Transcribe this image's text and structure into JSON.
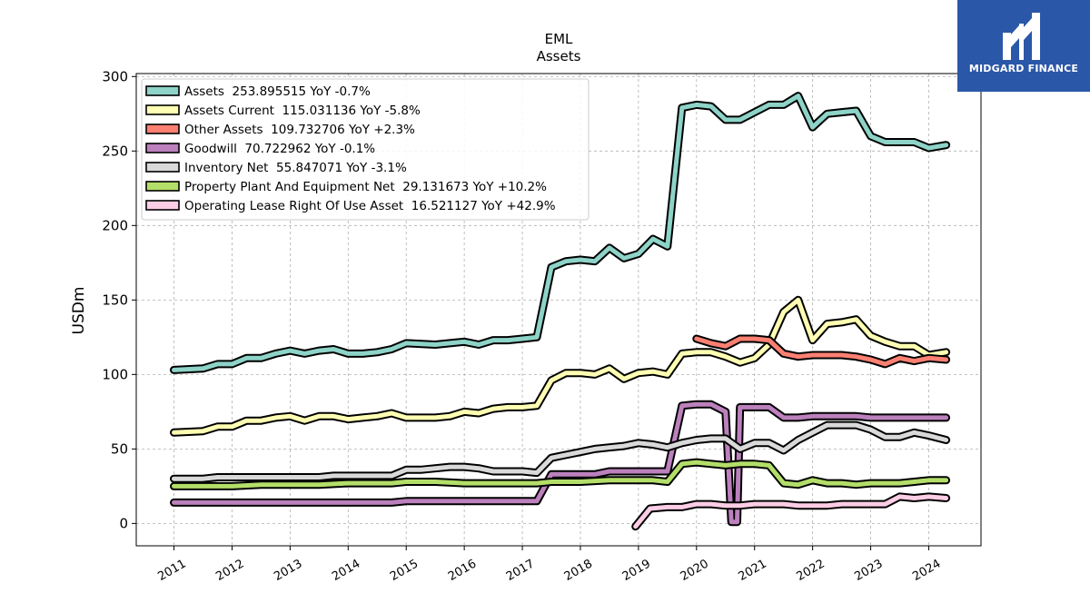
{
  "chart_data": {
    "type": "line",
    "title": "EML",
    "subtitle": "Assets",
    "xlabel": "",
    "ylabel": "USDm",
    "ylim": [
      -15,
      302
    ],
    "xlim": [
      2010.35,
      2024.9
    ],
    "yticks": [
      0,
      50,
      100,
      150,
      200,
      250,
      300
    ],
    "xticks": [
      "2011",
      "2012",
      "2013",
      "2014",
      "2015",
      "2016",
      "2017",
      "2018",
      "2019",
      "2020",
      "2021",
      "2022",
      "2023",
      "2024"
    ],
    "grid": true,
    "legend_position": "top-left",
    "series": [
      {
        "name": "Assets  253.895515 YoY -0.7%",
        "color": "#8dd3c7",
        "points": [
          [
            2011.0,
            103
          ],
          [
            2011.5,
            104
          ],
          [
            2011.75,
            107
          ],
          [
            2012.0,
            107
          ],
          [
            2012.25,
            111
          ],
          [
            2012.5,
            111
          ],
          [
            2012.75,
            114
          ],
          [
            2013.0,
            116
          ],
          [
            2013.25,
            114
          ],
          [
            2013.5,
            116
          ],
          [
            2013.75,
            117
          ],
          [
            2014.0,
            114
          ],
          [
            2014.25,
            114
          ],
          [
            2014.5,
            115
          ],
          [
            2014.75,
            117
          ],
          [
            2015.0,
            121
          ],
          [
            2015.5,
            120
          ],
          [
            2015.75,
            121
          ],
          [
            2016.0,
            122
          ],
          [
            2016.25,
            120
          ],
          [
            2016.5,
            123
          ],
          [
            2016.75,
            123
          ],
          [
            2017.0,
            124
          ],
          [
            2017.25,
            125
          ],
          [
            2017.5,
            172
          ],
          [
            2017.75,
            176
          ],
          [
            2018.0,
            177
          ],
          [
            2018.25,
            176
          ],
          [
            2018.5,
            185
          ],
          [
            2018.75,
            178
          ],
          [
            2019.0,
            181
          ],
          [
            2019.25,
            191
          ],
          [
            2019.5,
            186
          ],
          [
            2019.75,
            279
          ],
          [
            2020.0,
            281
          ],
          [
            2020.25,
            280
          ],
          [
            2020.5,
            271
          ],
          [
            2020.75,
            271
          ],
          [
            2021.0,
            276
          ],
          [
            2021.25,
            281
          ],
          [
            2021.5,
            281
          ],
          [
            2021.75,
            287
          ],
          [
            2022.0,
            266
          ],
          [
            2022.25,
            275
          ],
          [
            2022.5,
            276
          ],
          [
            2022.75,
            277
          ],
          [
            2023.0,
            260
          ],
          [
            2023.25,
            256
          ],
          [
            2023.5,
            256
          ],
          [
            2023.75,
            256
          ],
          [
            2024.0,
            252
          ],
          [
            2024.3,
            254
          ]
        ]
      },
      {
        "name": "Assets Current  115.031136 YoY -5.8%",
        "color": "#ffffb3",
        "points": [
          [
            2011.0,
            61
          ],
          [
            2011.5,
            62
          ],
          [
            2011.75,
            65
          ],
          [
            2012.0,
            65
          ],
          [
            2012.25,
            69
          ],
          [
            2012.5,
            69
          ],
          [
            2012.75,
            71
          ],
          [
            2013.0,
            72
          ],
          [
            2013.25,
            69
          ],
          [
            2013.5,
            72
          ],
          [
            2013.75,
            72
          ],
          [
            2014.0,
            70
          ],
          [
            2014.25,
            71
          ],
          [
            2014.5,
            72
          ],
          [
            2014.75,
            74
          ],
          [
            2015.0,
            71
          ],
          [
            2015.5,
            71
          ],
          [
            2015.75,
            72
          ],
          [
            2016.0,
            75
          ],
          [
            2016.25,
            74
          ],
          [
            2016.5,
            77
          ],
          [
            2016.75,
            78
          ],
          [
            2017.0,
            78
          ],
          [
            2017.25,
            79
          ],
          [
            2017.5,
            96
          ],
          [
            2017.75,
            101
          ],
          [
            2018.0,
            101
          ],
          [
            2018.25,
            100
          ],
          [
            2018.5,
            104
          ],
          [
            2018.75,
            97
          ],
          [
            2019.0,
            101
          ],
          [
            2019.25,
            102
          ],
          [
            2019.5,
            100
          ],
          [
            2019.75,
            114
          ],
          [
            2020.0,
            115
          ],
          [
            2020.25,
            115
          ],
          [
            2020.5,
            112
          ],
          [
            2020.75,
            108
          ],
          [
            2021.0,
            111
          ],
          [
            2021.25,
            120
          ],
          [
            2021.5,
            142
          ],
          [
            2021.75,
            150
          ],
          [
            2022.0,
            123
          ],
          [
            2022.25,
            134
          ],
          [
            2022.5,
            135
          ],
          [
            2022.75,
            137
          ],
          [
            2023.0,
            126
          ],
          [
            2023.25,
            122
          ],
          [
            2023.5,
            119
          ],
          [
            2023.75,
            119
          ],
          [
            2024.0,
            113
          ],
          [
            2024.3,
            115
          ]
        ]
      },
      {
        "name": "Other Assets  109.732706 YoY +2.3%",
        "color": "#fb8072",
        "points": [
          [
            2020.0,
            124
          ],
          [
            2020.25,
            121
          ],
          [
            2020.5,
            119
          ],
          [
            2020.75,
            124
          ],
          [
            2021.0,
            124
          ],
          [
            2021.25,
            123
          ],
          [
            2021.5,
            114
          ],
          [
            2021.75,
            112
          ],
          [
            2022.0,
            113
          ],
          [
            2022.25,
            113
          ],
          [
            2022.5,
            113
          ],
          [
            2022.75,
            112
          ],
          [
            2023.0,
            110
          ],
          [
            2023.25,
            107
          ],
          [
            2023.5,
            111
          ],
          [
            2023.75,
            109
          ],
          [
            2024.0,
            111
          ],
          [
            2024.3,
            110
          ]
        ]
      },
      {
        "name": "Goodwill  70.722962 YoY -0.1%",
        "color": "#bc80bd",
        "points": [
          [
            2011.0,
            14
          ],
          [
            2012.0,
            14
          ],
          [
            2013.0,
            14
          ],
          [
            2014.0,
            14
          ],
          [
            2014.75,
            14
          ],
          [
            2015.0,
            15
          ],
          [
            2016.0,
            15
          ],
          [
            2016.5,
            15
          ],
          [
            2017.0,
            15
          ],
          [
            2017.25,
            15
          ],
          [
            2017.5,
            33
          ],
          [
            2018.0,
            33
          ],
          [
            2018.25,
            33
          ],
          [
            2018.5,
            35
          ],
          [
            2019.0,
            35
          ],
          [
            2019.5,
            35
          ],
          [
            2019.75,
            79
          ],
          [
            2020.0,
            80
          ],
          [
            2020.25,
            80
          ],
          [
            2020.5,
            75
          ],
          [
            2020.6,
            1
          ],
          [
            2020.7,
            1
          ],
          [
            2020.75,
            78
          ],
          [
            2021.0,
            78
          ],
          [
            2021.25,
            78
          ],
          [
            2021.5,
            71
          ],
          [
            2021.75,
            71
          ],
          [
            2022.0,
            72
          ],
          [
            2022.5,
            72
          ],
          [
            2022.75,
            72
          ],
          [
            2023.0,
            71
          ],
          [
            2023.5,
            71
          ],
          [
            2024.0,
            71
          ],
          [
            2024.3,
            71
          ]
        ]
      },
      {
        "name": "Inventory Net  55.847071 YoY -3.1%",
        "color": "#d9d9d9",
        "points": [
          [
            2011.0,
            30
          ],
          [
            2011.5,
            30
          ],
          [
            2011.75,
            31
          ],
          [
            2012.0,
            31
          ],
          [
            2012.25,
            31
          ],
          [
            2012.5,
            31
          ],
          [
            2012.75,
            31
          ],
          [
            2013.0,
            31
          ],
          [
            2013.5,
            31
          ],
          [
            2013.75,
            32
          ],
          [
            2014.0,
            32
          ],
          [
            2014.25,
            32
          ],
          [
            2014.5,
            32
          ],
          [
            2014.75,
            32
          ],
          [
            2015.0,
            36
          ],
          [
            2015.25,
            36
          ],
          [
            2015.5,
            37
          ],
          [
            2015.75,
            38
          ],
          [
            2016.0,
            38
          ],
          [
            2016.25,
            37
          ],
          [
            2016.5,
            35
          ],
          [
            2016.75,
            35
          ],
          [
            2017.0,
            35
          ],
          [
            2017.25,
            34
          ],
          [
            2017.5,
            44
          ],
          [
            2017.75,
            46
          ],
          [
            2018.0,
            48
          ],
          [
            2018.25,
            50
          ],
          [
            2018.5,
            51
          ],
          [
            2018.75,
            52
          ],
          [
            2019.0,
            54
          ],
          [
            2019.25,
            53
          ],
          [
            2019.5,
            51
          ],
          [
            2019.75,
            54
          ],
          [
            2020.0,
            56
          ],
          [
            2020.25,
            57
          ],
          [
            2020.5,
            57
          ],
          [
            2020.75,
            50
          ],
          [
            2021.0,
            54
          ],
          [
            2021.25,
            54
          ],
          [
            2021.5,
            49
          ],
          [
            2021.75,
            56
          ],
          [
            2022.0,
            61
          ],
          [
            2022.25,
            66
          ],
          [
            2022.5,
            66
          ],
          [
            2022.75,
            66
          ],
          [
            2023.0,
            63
          ],
          [
            2023.25,
            58
          ],
          [
            2023.5,
            58
          ],
          [
            2023.75,
            61
          ],
          [
            2024.0,
            59
          ],
          [
            2024.3,
            56
          ]
        ]
      },
      {
        "name": "Property Plant And Equipment Net  29.131673 YoY +10.2%",
        "color": "#b3de69",
        "points": [
          [
            2011.0,
            25
          ],
          [
            2011.5,
            25
          ],
          [
            2012.0,
            25
          ],
          [
            2012.5,
            26
          ],
          [
            2013.0,
            26
          ],
          [
            2013.5,
            26
          ],
          [
            2014.0,
            27
          ],
          [
            2014.5,
            27
          ],
          [
            2014.75,
            27
          ],
          [
            2015.0,
            28
          ],
          [
            2015.5,
            28
          ],
          [
            2016.0,
            27
          ],
          [
            2016.5,
            27
          ],
          [
            2017.0,
            27
          ],
          [
            2017.25,
            27
          ],
          [
            2017.5,
            28
          ],
          [
            2018.0,
            28
          ],
          [
            2018.5,
            29
          ],
          [
            2019.0,
            29
          ],
          [
            2019.25,
            29
          ],
          [
            2019.5,
            28
          ],
          [
            2019.75,
            40
          ],
          [
            2020.0,
            41
          ],
          [
            2020.25,
            40
          ],
          [
            2020.5,
            39
          ],
          [
            2020.75,
            40
          ],
          [
            2021.0,
            40
          ],
          [
            2021.25,
            39
          ],
          [
            2021.5,
            27
          ],
          [
            2021.75,
            26
          ],
          [
            2022.0,
            29
          ],
          [
            2022.25,
            27
          ],
          [
            2022.5,
            27
          ],
          [
            2022.75,
            26
          ],
          [
            2023.0,
            27
          ],
          [
            2023.25,
            27
          ],
          [
            2023.5,
            27
          ],
          [
            2023.75,
            28
          ],
          [
            2024.0,
            29
          ],
          [
            2024.3,
            29
          ]
        ]
      },
      {
        "name": "Operating Lease Right Of Use Asset  16.521127 YoY +42.9%",
        "color": "#fccde5",
        "points": [
          [
            2018.95,
            -2
          ],
          [
            2019.2,
            10
          ],
          [
            2019.5,
            11
          ],
          [
            2019.75,
            11
          ],
          [
            2020.0,
            13
          ],
          [
            2020.25,
            13
          ],
          [
            2020.5,
            12
          ],
          [
            2020.75,
            12
          ],
          [
            2021.0,
            13
          ],
          [
            2021.25,
            13
          ],
          [
            2021.5,
            13
          ],
          [
            2021.75,
            12
          ],
          [
            2022.0,
            12
          ],
          [
            2022.25,
            12
          ],
          [
            2022.5,
            13
          ],
          [
            2022.75,
            13
          ],
          [
            2023.0,
            13
          ],
          [
            2023.25,
            13
          ],
          [
            2023.5,
            18
          ],
          [
            2023.75,
            17
          ],
          [
            2024.0,
            18
          ],
          [
            2024.3,
            17
          ]
        ]
      }
    ]
  },
  "logo": {
    "text": "MIDGARD FINANCE"
  }
}
